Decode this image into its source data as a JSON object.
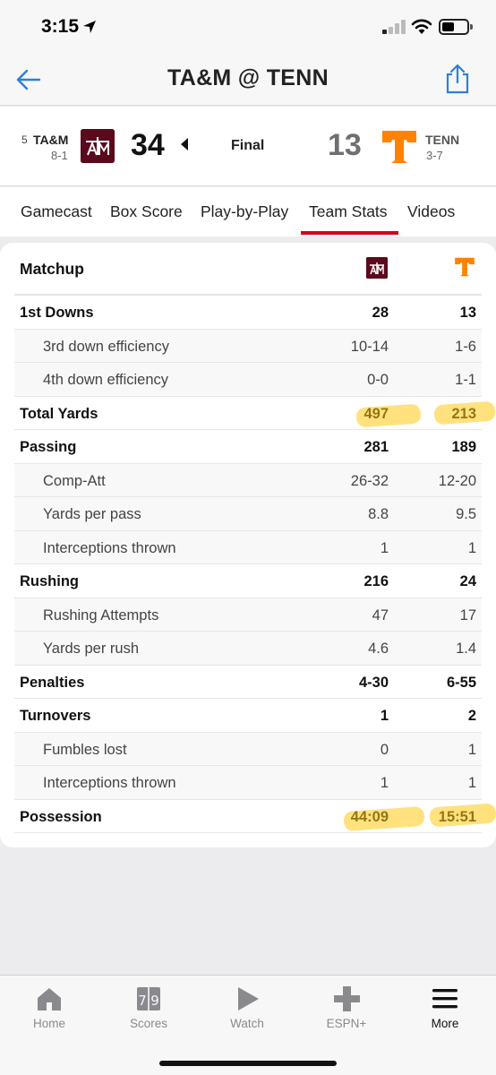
{
  "status_bar": {
    "time": "3:15"
  },
  "nav": {
    "title": "TA&M @ TENN"
  },
  "scoreboard": {
    "away": {
      "rank": "5",
      "abbr": "TA&M",
      "record": "8-1",
      "score": "34",
      "logo_text": "ATM",
      "color": "#5a0a1c"
    },
    "home": {
      "abbr": "TENN",
      "record": "3-7",
      "score": "13",
      "logo_text": "T",
      "color": "#ff8200"
    },
    "status": "Final"
  },
  "tabs": [
    {
      "label": "Gamecast"
    },
    {
      "label": "Box Score"
    },
    {
      "label": "Play-by-Play"
    },
    {
      "label": "Team Stats",
      "active": true
    },
    {
      "label": "Videos"
    }
  ],
  "stats": {
    "title": "Matchup",
    "rows": [
      {
        "label": "1st Downs",
        "away": "28",
        "home": "13",
        "type": "main"
      },
      {
        "label": "3rd down efficiency",
        "away": "10-14",
        "home": "1-6",
        "type": "sub"
      },
      {
        "label": "4th down efficiency",
        "away": "0-0",
        "home": "1-1",
        "type": "sub"
      },
      {
        "label": "Total Yards",
        "away": "497",
        "home": "213",
        "type": "main"
      },
      {
        "label": "Passing",
        "away": "281",
        "home": "189",
        "type": "main"
      },
      {
        "label": "Comp-Att",
        "away": "26-32",
        "home": "12-20",
        "type": "sub"
      },
      {
        "label": "Yards per pass",
        "away": "8.8",
        "home": "9.5",
        "type": "sub"
      },
      {
        "label": "Interceptions thrown",
        "away": "1",
        "home": "1",
        "type": "sub"
      },
      {
        "label": "Rushing",
        "away": "216",
        "home": "24",
        "type": "main"
      },
      {
        "label": "Rushing Attempts",
        "away": "47",
        "home": "17",
        "type": "sub"
      },
      {
        "label": "Yards per rush",
        "away": "4.6",
        "home": "1.4",
        "type": "sub"
      },
      {
        "label": "Penalties",
        "away": "4-30",
        "home": "6-55",
        "type": "main"
      },
      {
        "label": "Turnovers",
        "away": "1",
        "home": "2",
        "type": "main"
      },
      {
        "label": "Fumbles lost",
        "away": "0",
        "home": "1",
        "type": "sub"
      },
      {
        "label": "Interceptions thrown",
        "away": "1",
        "home": "1",
        "type": "sub"
      },
      {
        "label": "Possession",
        "away": "44:09",
        "home": "15:51",
        "type": "main"
      }
    ]
  },
  "tab_bar": [
    {
      "label": "Home",
      "icon": "home-icon"
    },
    {
      "label": "Scores",
      "icon": "scores-icon",
      "icon_text": "7|9"
    },
    {
      "label": "Watch",
      "icon": "play-icon"
    },
    {
      "label": "ESPN+",
      "icon": "plus-icon"
    },
    {
      "label": "More",
      "icon": "menu-icon",
      "active": true
    }
  ],
  "colors": {
    "accent": "#d0021b",
    "highlight": "#ffc814",
    "link": "#2f7fd6"
  }
}
